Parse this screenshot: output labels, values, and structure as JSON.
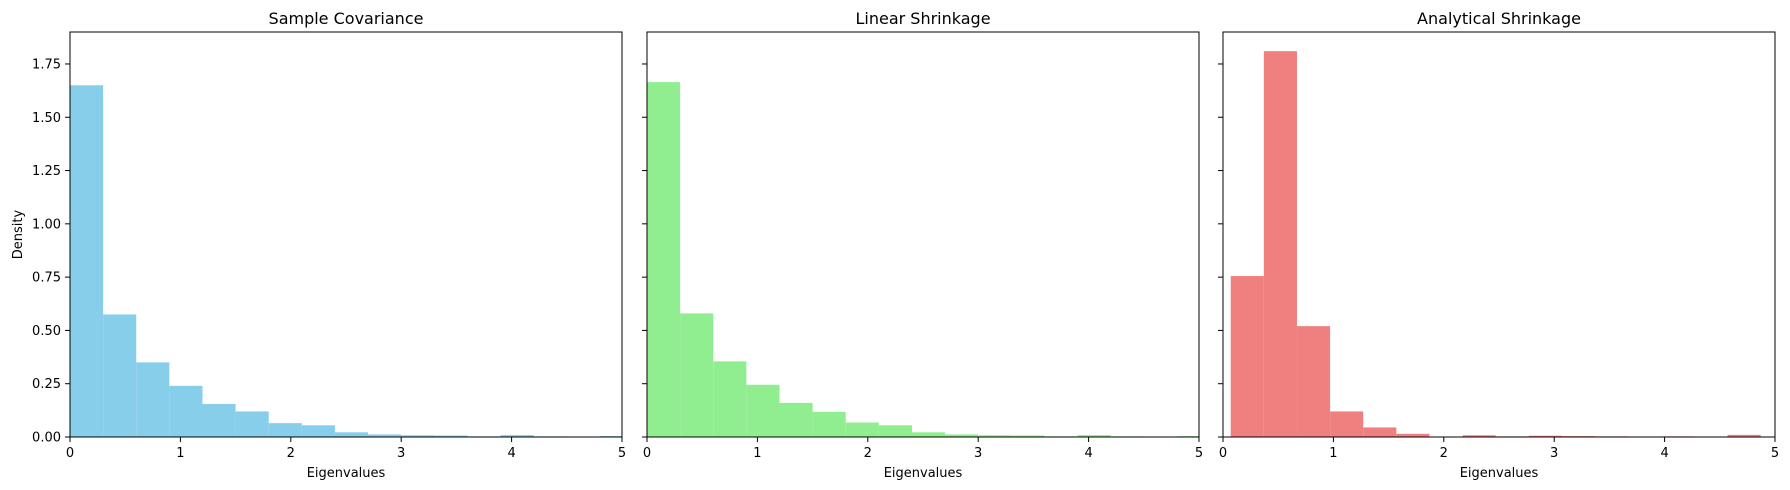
{
  "chart_data": [
    {
      "type": "bar",
      "title": "Sample Covariance",
      "xlabel": "Eigenvalues",
      "ylabel": "Density",
      "color": "#87ceeb",
      "xlim": [
        0,
        5
      ],
      "ylim": [
        0,
        1.9
      ],
      "xticks": [
        "0",
        "1",
        "2",
        "3",
        "4",
        "5"
      ],
      "yticks": [
        "0.00",
        "0.25",
        "0.50",
        "0.75",
        "1.00",
        "1.25",
        "1.50",
        "1.75"
      ],
      "bins": [
        {
          "start": 0.0,
          "end": 0.3,
          "value": 1.65
        },
        {
          "start": 0.3,
          "end": 0.6,
          "value": 0.575
        },
        {
          "start": 0.6,
          "end": 0.9,
          "value": 0.35
        },
        {
          "start": 0.9,
          "end": 1.2,
          "value": 0.24
        },
        {
          "start": 1.2,
          "end": 1.5,
          "value": 0.155
        },
        {
          "start": 1.5,
          "end": 1.8,
          "value": 0.12
        },
        {
          "start": 1.8,
          "end": 2.1,
          "value": 0.065
        },
        {
          "start": 2.1,
          "end": 2.4,
          "value": 0.055
        },
        {
          "start": 2.4,
          "end": 2.7,
          "value": 0.022
        },
        {
          "start": 2.7,
          "end": 3.0,
          "value": 0.012
        },
        {
          "start": 3.0,
          "end": 3.3,
          "value": 0.008
        },
        {
          "start": 3.3,
          "end": 3.6,
          "value": 0.007
        },
        {
          "start": 3.6,
          "end": 3.9,
          "value": 0.003
        },
        {
          "start": 3.9,
          "end": 4.2,
          "value": 0.009
        },
        {
          "start": 4.2,
          "end": 4.5,
          "value": 0.003
        },
        {
          "start": 4.5,
          "end": 4.8,
          "value": 0.001
        },
        {
          "start": 4.8,
          "end": 5.0,
          "value": 0.004
        }
      ]
    },
    {
      "type": "bar",
      "title": "Linear Shrinkage",
      "xlabel": "Eigenvalues",
      "ylabel": "",
      "color": "#90ee90",
      "xlim": [
        0,
        5
      ],
      "ylim": [
        0,
        1.9
      ],
      "xticks": [
        "0",
        "1",
        "2",
        "3",
        "4",
        "5"
      ],
      "yticks": [
        "",
        "",
        "",
        "",
        "",
        "",
        "",
        ""
      ],
      "bins": [
        {
          "start": 0.0,
          "end": 0.3,
          "value": 1.665
        },
        {
          "start": 0.3,
          "end": 0.6,
          "value": 0.58
        },
        {
          "start": 0.6,
          "end": 0.9,
          "value": 0.355
        },
        {
          "start": 0.9,
          "end": 1.2,
          "value": 0.245
        },
        {
          "start": 1.2,
          "end": 1.5,
          "value": 0.16
        },
        {
          "start": 1.5,
          "end": 1.8,
          "value": 0.118
        },
        {
          "start": 1.8,
          "end": 2.1,
          "value": 0.068
        },
        {
          "start": 2.1,
          "end": 2.4,
          "value": 0.055
        },
        {
          "start": 2.4,
          "end": 2.7,
          "value": 0.022
        },
        {
          "start": 2.7,
          "end": 3.0,
          "value": 0.012
        },
        {
          "start": 3.0,
          "end": 3.3,
          "value": 0.008
        },
        {
          "start": 3.3,
          "end": 3.6,
          "value": 0.007
        },
        {
          "start": 3.6,
          "end": 3.9,
          "value": 0.003
        },
        {
          "start": 3.9,
          "end": 4.2,
          "value": 0.009
        },
        {
          "start": 4.2,
          "end": 4.5,
          "value": 0.003
        },
        {
          "start": 4.5,
          "end": 4.8,
          "value": 0.001
        },
        {
          "start": 4.8,
          "end": 5.0,
          "value": 0.004
        }
      ]
    },
    {
      "type": "bar",
      "title": "Analytical Shrinkage",
      "xlabel": "Eigenvalues",
      "ylabel": "",
      "color": "#f08080",
      "xlim": [
        0,
        5
      ],
      "ylim": [
        0,
        1.9
      ],
      "xticks": [
        "0",
        "1",
        "2",
        "3",
        "4",
        "5"
      ],
      "yticks": [
        "",
        "",
        "",
        "",
        "",
        "",
        "",
        ""
      ],
      "bins": [
        {
          "start": 0.07,
          "end": 0.37,
          "value": 0.755
        },
        {
          "start": 0.37,
          "end": 0.67,
          "value": 1.81
        },
        {
          "start": 0.67,
          "end": 0.97,
          "value": 0.52
        },
        {
          "start": 0.97,
          "end": 1.27,
          "value": 0.12
        },
        {
          "start": 1.27,
          "end": 1.57,
          "value": 0.045
        },
        {
          "start": 1.57,
          "end": 1.87,
          "value": 0.015
        },
        {
          "start": 1.87,
          "end": 2.17,
          "value": 0.002
        },
        {
          "start": 2.17,
          "end": 2.47,
          "value": 0.008
        },
        {
          "start": 2.47,
          "end": 2.77,
          "value": 0.003
        },
        {
          "start": 2.77,
          "end": 3.07,
          "value": 0.006
        },
        {
          "start": 3.07,
          "end": 3.37,
          "value": 0.004
        },
        {
          "start": 3.37,
          "end": 3.67,
          "value": 0.003
        },
        {
          "start": 3.67,
          "end": 3.97,
          "value": 0.001
        },
        {
          "start": 3.97,
          "end": 4.27,
          "value": 0.003
        },
        {
          "start": 4.27,
          "end": 4.57,
          "value": 0.001
        },
        {
          "start": 4.57,
          "end": 4.87,
          "value": 0.01
        }
      ]
    }
  ]
}
